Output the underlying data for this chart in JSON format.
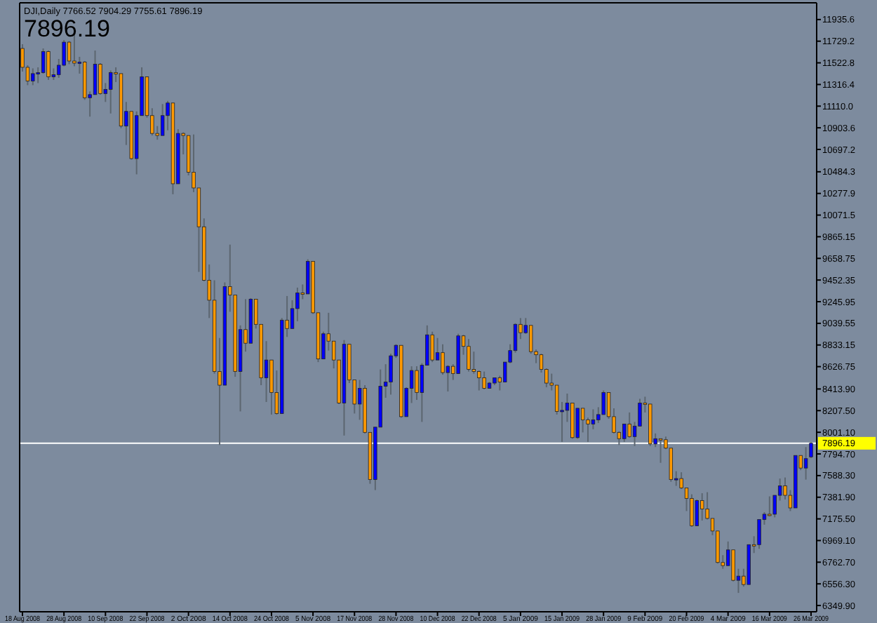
{
  "chart_data": {
    "type": "candlestick",
    "title": "DJI,Daily  7766.52 7904.29 7755.61 7896.19",
    "subtitle": "7896.19",
    "categories": [
      "18 Aug 2008",
      null,
      null,
      null,
      null,
      null,
      null,
      null,
      "28 Aug 2008",
      null,
      null,
      null,
      null,
      null,
      null,
      null,
      "10 Sep 2008",
      null,
      null,
      null,
      null,
      null,
      null,
      null,
      "22 Sep 2008",
      null,
      null,
      null,
      null,
      null,
      null,
      null,
      "2 Oct 2008",
      null,
      null,
      null,
      null,
      null,
      null,
      null,
      "14 Oct 2008",
      null,
      null,
      null,
      null,
      null,
      null,
      null,
      "24 Oct 2008",
      null,
      null,
      null,
      null,
      null,
      null,
      null,
      "5 Nov 2008",
      null,
      null,
      null,
      null,
      null,
      null,
      null,
      "17 Nov 2008",
      null,
      null,
      null,
      null,
      null,
      null,
      null,
      "28 Nov 2008",
      null,
      null,
      null,
      null,
      null,
      null,
      null,
      "10 Dec 2008",
      null,
      null,
      null,
      null,
      null,
      null,
      null,
      "22 Dec 2008",
      null,
      null,
      null,
      null,
      null,
      null,
      null,
      "5 Jan 2009",
      null,
      null,
      null,
      null,
      null,
      null,
      null,
      "15 Jan 2009",
      null,
      null,
      null,
      null,
      null,
      null,
      null,
      "28 Jan 2009",
      null,
      null,
      null,
      null,
      null,
      null,
      null,
      "9 Feb 2009",
      null,
      null,
      null,
      null,
      null,
      null,
      null,
      "20 Feb 2009",
      null,
      null,
      null,
      null,
      null,
      null,
      null,
      "4 Mar 2009",
      null,
      null,
      null,
      null,
      null,
      null,
      null,
      "16 Mar 2009",
      null,
      null,
      null,
      null,
      null,
      null,
      null,
      "26 Mar 2009"
    ],
    "ohlc": [
      [
        11660,
        11700,
        11440,
        11480
      ],
      [
        11480,
        11500,
        11310,
        11350
      ],
      [
        11350,
        11470,
        11310,
        11420
      ],
      [
        11420,
        11480,
        11330,
        11430
      ],
      [
        11430,
        11660,
        11420,
        11630
      ],
      [
        11630,
        11640,
        11360,
        11390
      ],
      [
        11390,
        11470,
        11360,
        11410
      ],
      [
        11410,
        11560,
        11380,
        11500
      ],
      [
        11500,
        11740,
        11490,
        11720
      ],
      [
        11720,
        11730,
        11510,
        11540
      ],
      [
        11540,
        11790,
        11490,
        11520
      ],
      [
        11520,
        11580,
        11420,
        11530
      ],
      [
        11530,
        11540,
        11170,
        11190
      ],
      [
        11190,
        11250,
        11010,
        11220
      ],
      [
        11220,
        11640,
        11220,
        11510
      ],
      [
        11510,
        11520,
        11220,
        11230
      ],
      [
        11230,
        11330,
        11150,
        11270
      ],
      [
        11270,
        11450,
        11040,
        11430
      ],
      [
        11430,
        11480,
        11340,
        11420
      ],
      [
        11420,
        11420,
        10900,
        10920
      ],
      [
        10920,
        11150,
        10740,
        11060
      ],
      [
        11060,
        11060,
        10600,
        10610
      ],
      [
        10610,
        11060,
        10460,
        11020
      ],
      [
        11020,
        11480,
        11020,
        11390
      ],
      [
        11390,
        11390,
        11000,
        11020
      ],
      [
        11020,
        11090,
        10830,
        10850
      ],
      [
        10850,
        10920,
        10790,
        10830
      ],
      [
        10830,
        11130,
        10830,
        11020
      ],
      [
        11020,
        11160,
        10880,
        11140
      ],
      [
        11140,
        11140,
        10270,
        10370
      ],
      [
        10370,
        10890,
        10370,
        10850
      ],
      [
        10850,
        10860,
        10650,
        10830
      ],
      [
        10830,
        10830,
        10450,
        10480
      ],
      [
        10480,
        10840,
        10290,
        10330
      ],
      [
        10330,
        10330,
        9530,
        9960
      ],
      [
        9960,
        10040,
        9440,
        9450
      ],
      [
        9450,
        9600,
        9090,
        9260
      ],
      [
        9260,
        9450,
        8560,
        8580
      ],
      [
        8580,
        8900,
        7880,
        8450
      ],
      [
        8450,
        9430,
        8450,
        9390
      ],
      [
        9390,
        9790,
        9150,
        9310
      ],
      [
        9310,
        9310,
        8530,
        8580
      ],
      [
        8580,
        9020,
        8200,
        8980
      ],
      [
        8980,
        9270,
        8770,
        8850
      ],
      [
        8850,
        9280,
        8850,
        9270
      ],
      [
        9270,
        9270,
        8990,
        9030
      ],
      [
        9030,
        9030,
        8450,
        8520
      ],
      [
        8520,
        8870,
        8290,
        8690
      ],
      [
        8690,
        8690,
        8170,
        8380
      ],
      [
        8380,
        8590,
        8170,
        8180
      ],
      [
        8180,
        9090,
        8180,
        9070
      ],
      [
        9070,
        9300,
        8910,
        8990
      ],
      [
        8990,
        9260,
        8990,
        9180
      ],
      [
        9180,
        9380,
        9060,
        9330
      ],
      [
        9330,
        9410,
        9270,
        9320
      ],
      [
        9320,
        9650,
        9320,
        9630
      ],
      [
        9630,
        9630,
        9130,
        9140
      ],
      [
        9140,
        9140,
        8670,
        8700
      ],
      [
        8700,
        8960,
        8700,
        8940
      ],
      [
        8940,
        9140,
        8780,
        8870
      ],
      [
        8870,
        8870,
        8610,
        8690
      ],
      [
        8690,
        8690,
        8270,
        8280
      ],
      [
        8280,
        8880,
        7970,
        8840
      ],
      [
        8840,
        8840,
        8470,
        8500
      ],
      [
        8500,
        8500,
        8180,
        8270
      ],
      [
        8270,
        8500,
        8120,
        8420
      ],
      [
        8420,
        8450,
        7990,
        8000
      ],
      [
        8000,
        8000,
        7510,
        7550
      ],
      [
        7550,
        8050,
        7450,
        8050
      ],
      [
        8050,
        8600,
        8050,
        8440
      ],
      [
        8440,
        8650,
        8330,
        8480
      ],
      [
        8480,
        8750,
        8360,
        8730
      ],
      [
        8730,
        8840,
        8710,
        8830
      ],
      [
        8830,
        8830,
        8140,
        8150
      ],
      [
        8150,
        8430,
        8150,
        8420
      ],
      [
        8420,
        8630,
        8280,
        8590
      ],
      [
        8590,
        8630,
        8310,
        8380
      ],
      [
        8380,
        8660,
        8100,
        8640
      ],
      [
        8640,
        9020,
        8640,
        8930
      ],
      [
        8930,
        8960,
        8670,
        8690
      ],
      [
        8690,
        8900,
        8690,
        8760
      ],
      [
        8760,
        8840,
        8550,
        8570
      ],
      [
        8570,
        8640,
        8390,
        8630
      ],
      [
        8630,
        8650,
        8500,
        8560
      ],
      [
        8560,
        8940,
        8560,
        8920
      ],
      [
        8920,
        8930,
        8740,
        8820
      ],
      [
        8820,
        8890,
        8580,
        8600
      ],
      [
        8600,
        8770,
        8560,
        8580
      ],
      [
        8580,
        8590,
        8400,
        8520
      ],
      [
        8520,
        8580,
        8410,
        8420
      ],
      [
        8420,
        8480,
        8420,
        8470
      ],
      [
        8470,
        8520,
        8450,
        8520
      ],
      [
        8520,
        8540,
        8400,
        8480
      ],
      [
        8480,
        8670,
        8480,
        8670
      ],
      [
        8670,
        8840,
        8660,
        8780
      ],
      [
        8780,
        9040,
        8760,
        9030
      ],
      [
        9030,
        9090,
        8890,
        8950
      ],
      [
        8950,
        9090,
        8940,
        9020
      ],
      [
        9020,
        9020,
        8750,
        8770
      ],
      [
        8770,
        8790,
        8660,
        8740
      ],
      [
        8740,
        8750,
        8570,
        8600
      ],
      [
        8600,
        8610,
        8430,
        8470
      ],
      [
        8470,
        8560,
        8400,
        8450
      ],
      [
        8450,
        8450,
        8170,
        8200
      ],
      [
        8200,
        8290,
        7910,
        8210
      ],
      [
        8210,
        8370,
        8100,
        8280
      ],
      [
        8280,
        8280,
        7940,
        7950
      ],
      [
        7950,
        8230,
        7940,
        8230
      ],
      [
        8230,
        8230,
        8000,
        8120
      ],
      [
        8120,
        8140,
        7910,
        8080
      ],
      [
        8080,
        8220,
        8030,
        8120
      ],
      [
        8120,
        8240,
        8090,
        8170
      ],
      [
        8170,
        8400,
        8170,
        8380
      ],
      [
        8380,
        8380,
        8130,
        8150
      ],
      [
        8150,
        8230,
        7990,
        8000
      ],
      [
        8000,
        8010,
        7880,
        7940
      ],
      [
        7940,
        8080,
        7910,
        8080
      ],
      [
        8080,
        8190,
        7950,
        7960
      ],
      [
        7960,
        8100,
        7870,
        8060
      ],
      [
        8060,
        8320,
        8060,
        8280
      ],
      [
        8280,
        8340,
        8190,
        8270
      ],
      [
        8270,
        8270,
        7870,
        7890
      ],
      [
        7890,
        7990,
        7860,
        7940
      ],
      [
        7940,
        7940,
        7710,
        7930
      ],
      [
        7930,
        7960,
        7840,
        7850
      ],
      [
        7850,
        7850,
        7530,
        7550
      ],
      [
        7550,
        7630,
        7490,
        7560
      ],
      [
        7560,
        7620,
        7460,
        7470
      ],
      [
        7470,
        7470,
        7250,
        7370
      ],
      [
        7370,
        7410,
        7100,
        7110
      ],
      [
        7110,
        7360,
        7110,
        7350
      ],
      [
        7350,
        7420,
        7160,
        7270
      ],
      [
        7270,
        7430,
        7170,
        7180
      ],
      [
        7180,
        7180,
        7020,
        7060
      ],
      [
        7060,
        7060,
        6750,
        6760
      ],
      [
        6760,
        6830,
        6700,
        6730
      ],
      [
        6730,
        6960,
        6730,
        6880
      ],
      [
        6880,
        6880,
        6580,
        6590
      ],
      [
        6590,
        6700,
        6470,
        6630
      ],
      [
        6630,
        6700,
        6530,
        6550
      ],
      [
        6550,
        6930,
        6550,
        6930
      ],
      [
        6930,
        7010,
        6850,
        6930
      ],
      [
        6930,
        7170,
        6890,
        7170
      ],
      [
        7170,
        7240,
        7120,
        7220
      ],
      [
        7220,
        7390,
        7200,
        7220
      ],
      [
        7220,
        7400,
        7190,
        7400
      ],
      [
        7400,
        7560,
        7350,
        7490
      ],
      [
        7490,
        7570,
        7360,
        7400
      ],
      [
        7400,
        7450,
        7250,
        7280
      ],
      [
        7280,
        7780,
        7280,
        7780
      ],
      [
        7780,
        7780,
        7640,
        7660
      ],
      [
        7660,
        7860,
        7550,
        7750
      ],
      [
        7766.52,
        7904.29,
        7755.61,
        7896.19
      ]
    ],
    "colors": [
      "#ff9900",
      "#ff9900",
      "#0000ff",
      "#0000ff",
      "#0000ff",
      "#ff9900",
      "#0000ff",
      "#0000ff",
      "#0000ff",
      "#ff9900",
      "#ff9900",
      "#0000ff",
      "#ff9900",
      "#0000ff",
      "#0000ff",
      "#ff9900",
      "#0000ff",
      "#0000ff",
      "#ff9900",
      "#ff9900",
      "#0000ff",
      "#ff9900",
      "#0000ff",
      "#0000ff",
      "#ff9900",
      "#ff9900",
      "#ff9900",
      "#0000ff",
      "#0000ff",
      "#ff9900",
      "#0000ff",
      "#ff9900",
      "#ff9900",
      "#ff9900",
      "#ff9900",
      "#ff9900",
      "#ff9900",
      "#ff9900",
      "#ff9900",
      "#0000ff",
      "#ff9900",
      "#ff9900",
      "#0000ff",
      "#ff9900",
      "#0000ff",
      "#ff9900",
      "#ff9900",
      "#0000ff",
      "#ff9900",
      "#ff9900",
      "#0000ff",
      "#ff9900",
      "#0000ff",
      "#0000ff",
      "#ff9900",
      "#0000ff",
      "#ff9900",
      "#ff9900",
      "#0000ff",
      "#ff9900",
      "#ff9900",
      "#ff9900",
      "#0000ff",
      "#ff9900",
      "#ff9900",
      "#0000ff",
      "#ff9900",
      "#ff9900",
      "#0000ff",
      "#0000ff",
      "#0000ff",
      "#0000ff",
      "#0000ff",
      "#ff9900",
      "#0000ff",
      "#0000ff",
      "#ff9900",
      "#0000ff",
      "#0000ff",
      "#ff9900",
      "#0000ff",
      "#ff9900",
      "#0000ff",
      "#ff9900",
      "#0000ff",
      "#ff9900",
      "#ff9900",
      "#ff9900",
      "#ff9900",
      "#ff9900",
      "#0000ff",
      "#0000ff",
      "#ff9900",
      "#0000ff",
      "#0000ff",
      "#0000ff",
      "#ff9900",
      "#0000ff",
      "#ff9900",
      "#ff9900",
      "#ff9900",
      "#ff9900",
      "#ff9900",
      "#ff9900",
      "#0000ff",
      "#0000ff",
      "#ff9900",
      "#0000ff",
      "#ff9900",
      "#ff9900",
      "#0000ff",
      "#0000ff",
      "#0000ff",
      "#ff9900",
      "#ff9900",
      "#ff9900",
      "#0000ff",
      "#ff9900",
      "#0000ff",
      "#0000ff",
      "#ff9900",
      "#ff9900",
      "#0000ff",
      "#ff9900",
      "#ff9900",
      "#ff9900",
      "#0000ff",
      "#ff9900",
      "#ff9900",
      "#ff9900",
      "#0000ff",
      "#ff9900",
      "#ff9900",
      "#ff9900",
      "#ff9900",
      "#ff9900",
      "#0000ff",
      "#ff9900",
      "#0000ff",
      "#ff9900",
      "#0000ff",
      "#ff9900",
      "#0000ff",
      "#0000ff",
      "#ff9900",
      "#0000ff",
      "#0000ff",
      "#ff9900",
      "#ff9900",
      "#0000ff",
      "#ff9900",
      "#0000ff",
      "#0000ff"
    ],
    "ylim": [
      6290,
      12095
    ],
    "yticks": [
      11935.6,
      11729.2,
      11522.8,
      11316.4,
      {
        "value": 11110,
        "label": "11110.0"
      },
      10903.6,
      10697.2,
      10484.3,
      10277.9,
      10071.5,
      9865.15,
      9658.75,
      9452.35,
      9245.95,
      9039.55,
      8833.15,
      8626.75,
      {
        "value": 8413.9,
        "label": "8413.90"
      },
      {
        "value": 8207.5,
        "label": "8207.50"
      },
      {
        "value": 8001.1,
        "label": "8001.10"
      },
      {
        "value": 7794.7,
        "label": "7794.70"
      },
      {
        "value": 7588.3,
        "label": "7588.30"
      },
      {
        "value": 7381.9,
        "label": "7381.90"
      },
      {
        "value": 7175.5,
        "label": "7175.50"
      },
      {
        "value": 6969.1,
        "label": "6969.10"
      },
      {
        "value": 6762.7,
        "label": "6762.70"
      },
      {
        "value": 6556.3,
        "label": "6556.30"
      },
      {
        "value": 6349.9,
        "label": "6349.90"
      }
    ],
    "ref_lines": [
      {
        "axis": "y",
        "value": 7896.19,
        "label": "7896.19",
        "color": "#ffffff"
      }
    ],
    "grid": false
  }
}
